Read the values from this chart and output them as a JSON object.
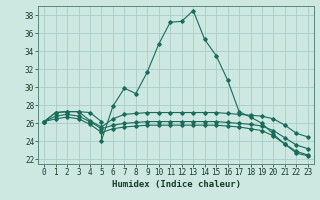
{
  "title": "",
  "xlabel": "Humidex (Indice chaleur)",
  "bg_color": "#cce8e0",
  "grid_color": "#aacccc",
  "line_color": "#1a6b5a",
  "xlim": [
    -0.5,
    23.5
  ],
  "ylim": [
    21.5,
    39.0
  ],
  "xticks": [
    0,
    1,
    2,
    3,
    4,
    5,
    6,
    7,
    8,
    9,
    10,
    11,
    12,
    13,
    14,
    15,
    16,
    17,
    18,
    19,
    20,
    21,
    22,
    23
  ],
  "yticks": [
    22,
    24,
    26,
    28,
    30,
    32,
    34,
    36,
    38
  ],
  "series": [
    {
      "x": [
        0,
        1,
        2,
        3,
        4,
        5,
        5,
        6,
        7,
        8,
        9,
        10,
        11,
        12,
        13,
        14,
        15,
        16,
        17,
        18,
        19,
        20,
        21,
        22,
        23
      ],
      "y": [
        26.2,
        27.2,
        27.3,
        27.3,
        27.2,
        26.2,
        24.1,
        27.9,
        29.9,
        29.3,
        31.7,
        34.8,
        37.2,
        37.3,
        38.5,
        35.3,
        33.5,
        30.8,
        27.3,
        26.7,
        26.0,
        24.8,
        23.7,
        22.7,
        22.4
      ]
    },
    {
      "x": [
        0,
        1,
        2,
        3,
        4,
        5,
        6,
        7,
        8,
        9,
        10,
        11,
        12,
        13,
        14,
        15,
        16,
        17,
        18,
        19,
        20,
        21,
        22,
        23
      ],
      "y": [
        26.2,
        27.2,
        27.3,
        27.3,
        26.3,
        25.6,
        26.5,
        27.0,
        27.1,
        27.2,
        27.2,
        27.2,
        27.2,
        27.2,
        27.2,
        27.2,
        27.1,
        27.0,
        26.9,
        26.8,
        26.5,
        25.8,
        24.9,
        24.5
      ]
    },
    {
      "x": [
        0,
        1,
        2,
        3,
        4,
        5,
        6,
        7,
        8,
        9,
        10,
        11,
        12,
        13,
        14,
        15,
        16,
        17,
        18,
        19,
        20,
        21,
        22,
        23
      ],
      "y": [
        26.2,
        26.8,
        27.0,
        26.8,
        26.2,
        25.4,
        25.8,
        26.0,
        26.1,
        26.2,
        26.2,
        26.2,
        26.2,
        26.2,
        26.2,
        26.2,
        26.1,
        26.0,
        25.9,
        25.7,
        25.2,
        24.4,
        23.6,
        23.2
      ]
    },
    {
      "x": [
        0,
        1,
        2,
        3,
        4,
        5,
        6,
        7,
        8,
        9,
        10,
        11,
        12,
        13,
        14,
        15,
        16,
        17,
        18,
        19,
        20,
        21,
        22,
        23
      ],
      "y": [
        26.2,
        26.5,
        26.7,
        26.5,
        25.9,
        25.0,
        25.4,
        25.6,
        25.7,
        25.8,
        25.8,
        25.8,
        25.8,
        25.8,
        25.8,
        25.8,
        25.7,
        25.6,
        25.4,
        25.2,
        24.6,
        23.7,
        22.9,
        22.5
      ]
    }
  ]
}
